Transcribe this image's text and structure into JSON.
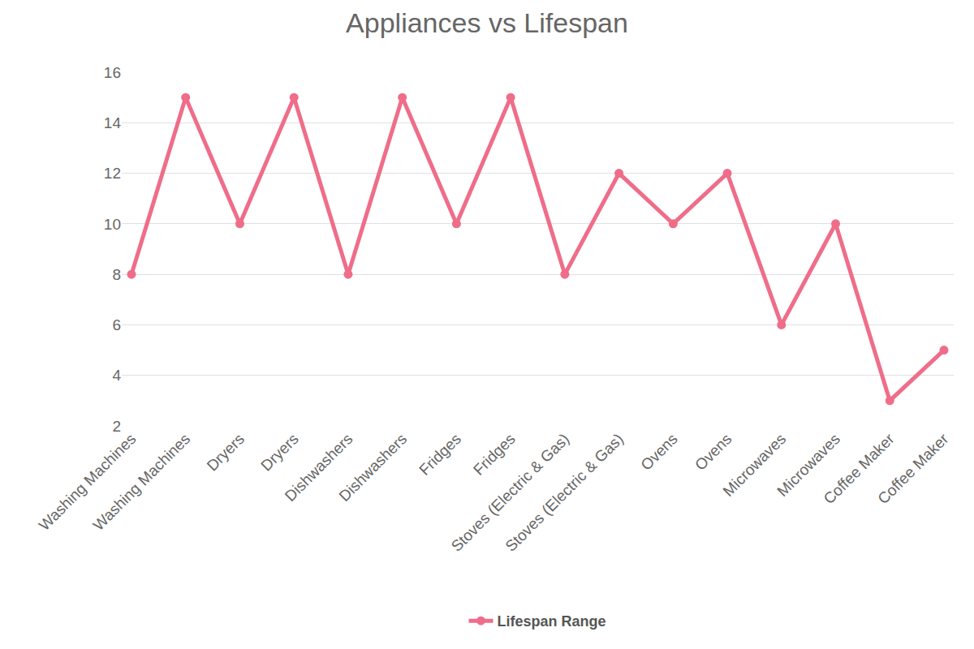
{
  "chart_data": {
    "type": "line",
    "title": "Appliances vs Lifespan",
    "categories": [
      "Washing Machines",
      "Washing Machines",
      "Dryers",
      "Dryers",
      "Dishwashers",
      "Dishwashers",
      "Fridges",
      "Fridges",
      "Stoves (Electric & Gas)",
      "Stoves (Electric & Gas)",
      "Ovens",
      "Ovens",
      "Microwaves",
      "Microwaves",
      "Coffee Maker",
      "Coffee Maker"
    ],
    "series": [
      {
        "name": "Lifespan Range",
        "color": "#ef6d89",
        "values": [
          8,
          15,
          10,
          15,
          8,
          15,
          10,
          15,
          8,
          12,
          10,
          12,
          6,
          10,
          3,
          5
        ]
      }
    ],
    "ylim": [
      2,
      16
    ],
    "yticks": [
      2,
      4,
      6,
      8,
      10,
      12,
      14,
      16
    ],
    "grid": true,
    "legend": "bottom",
    "marker": "circle"
  }
}
